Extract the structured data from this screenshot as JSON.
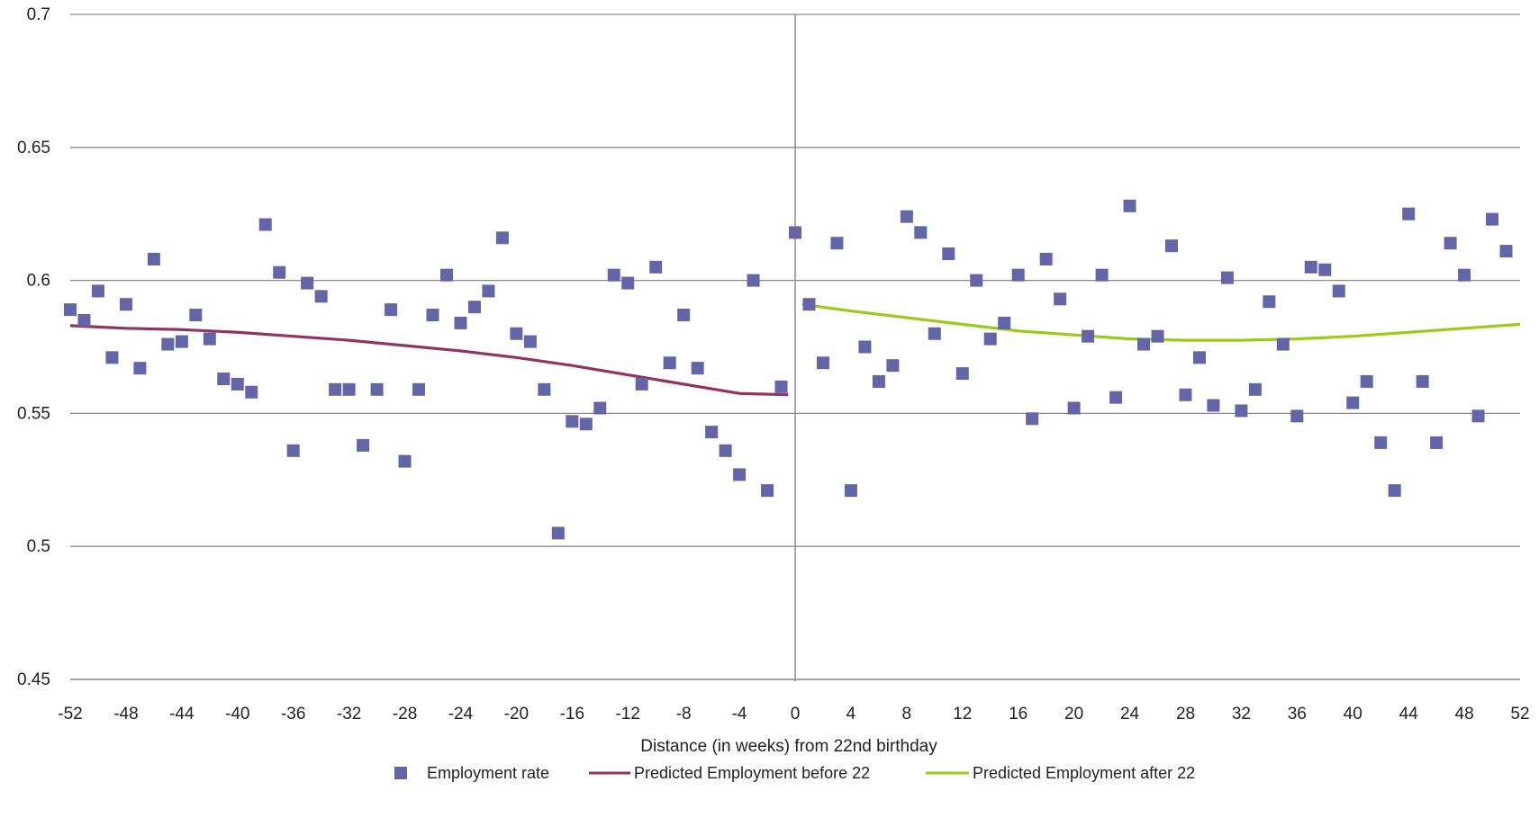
{
  "chart_data": {
    "type": "scatter",
    "title": "",
    "xlabel": "Distance (in weeks) from 22nd birthday",
    "ylabel": "",
    "xlim": [
      -52,
      52
    ],
    "ylim": [
      0.45,
      0.7
    ],
    "xticks": [
      -52,
      -48,
      -44,
      -40,
      -36,
      -32,
      -28,
      -24,
      -20,
      -16,
      -12,
      -8,
      -4,
      0,
      4,
      8,
      12,
      16,
      20,
      24,
      28,
      32,
      36,
      40,
      44,
      48,
      52
    ],
    "yticks": [
      0.45,
      0.5,
      0.55,
      0.6,
      0.65,
      0.7
    ],
    "ytick_labels": [
      "0.45",
      "0.5",
      "0.55",
      "0.6",
      "0.65",
      "0.7"
    ],
    "grid": "horizontal",
    "reference_line_x": 0,
    "legend_position": "bottom",
    "series": [
      {
        "name": "Employment rate",
        "kind": "scatter",
        "marker": "square",
        "color": "#6464a8",
        "x": [
          -52,
          -51,
          -50,
          -49,
          -48,
          -47,
          -46,
          -45,
          -44,
          -43,
          -42,
          -41,
          -40,
          -39,
          -38,
          -37,
          -36,
          -35,
          -34,
          -33,
          -32,
          -31,
          -30,
          -29,
          -28,
          -27,
          -26,
          -25,
          -24,
          -23,
          -22,
          -21,
          -20,
          -19,
          -18,
          -17,
          -16,
          -15,
          -14,
          -13,
          -12,
          -11,
          -10,
          -9,
          -8,
          -7,
          -6,
          -5,
          -4,
          -3,
          -2,
          -1,
          0,
          1,
          2,
          3,
          4,
          5,
          6,
          7,
          8,
          9,
          10,
          11,
          12,
          13,
          14,
          15,
          16,
          17,
          18,
          19,
          20,
          21,
          22,
          23,
          24,
          25,
          26,
          27,
          28,
          29,
          30,
          31,
          32,
          33,
          34,
          35,
          36,
          37,
          38,
          39,
          40,
          41,
          42,
          43,
          44,
          45,
          46,
          47,
          48,
          49,
          50,
          51
        ],
        "y": [
          0.589,
          0.585,
          0.596,
          0.571,
          0.591,
          0.567,
          0.608,
          0.576,
          0.577,
          0.587,
          0.578,
          0.563,
          0.561,
          0.558,
          0.621,
          0.603,
          0.536,
          0.599,
          0.594,
          0.559,
          0.559,
          0.538,
          0.559,
          0.589,
          0.532,
          0.559,
          0.587,
          0.602,
          0.584,
          0.59,
          0.596,
          0.616,
          0.58,
          0.577,
          0.559,
          0.505,
          0.547,
          0.546,
          0.552,
          0.602,
          0.599,
          0.561,
          0.605,
          0.569,
          0.587,
          0.567,
          0.543,
          0.536,
          0.527,
          0.6,
          0.521,
          0.56,
          0.618,
          0.591,
          0.569,
          0.614,
          0.521,
          0.575,
          0.562,
          0.568,
          0.624,
          0.618,
          0.58,
          0.61,
          0.565,
          0.6,
          0.578,
          0.584,
          0.602,
          0.548,
          0.608,
          0.593,
          0.552,
          0.579,
          0.602,
          0.556,
          0.628,
          0.576,
          0.579,
          0.613,
          0.557,
          0.571,
          0.553,
          0.601,
          0.551,
          0.559,
          0.592,
          0.576,
          0.549,
          0.605,
          0.604,
          0.596,
          0.554,
          0.562,
          0.539,
          0.521,
          0.625,
          0.562,
          0.539,
          0.614,
          0.602,
          0.549,
          0.623,
          0.611
        ]
      },
      {
        "name": "Predicted Employment before 22",
        "kind": "line",
        "color": "#93315f",
        "x": [
          -52,
          -48,
          -44,
          -40,
          -36,
          -32,
          -28,
          -24,
          -20,
          -16,
          -12,
          -8,
          -4,
          -0.5
        ],
        "y": [
          0.583,
          0.582,
          0.5815,
          0.5805,
          0.579,
          0.5775,
          0.5755,
          0.5735,
          0.571,
          0.568,
          0.5645,
          0.561,
          0.5575,
          0.557
        ]
      },
      {
        "name": "Predicted Employment after 22",
        "kind": "line",
        "color": "#99cc1a",
        "x": [
          0.5,
          4,
          8,
          12,
          16,
          20,
          24,
          28,
          32,
          36,
          40,
          44,
          48,
          52
        ],
        "y": [
          0.591,
          0.5885,
          0.586,
          0.5835,
          0.581,
          0.5795,
          0.578,
          0.5775,
          0.5775,
          0.578,
          0.579,
          0.5805,
          0.582,
          0.5835
        ]
      }
    ]
  }
}
